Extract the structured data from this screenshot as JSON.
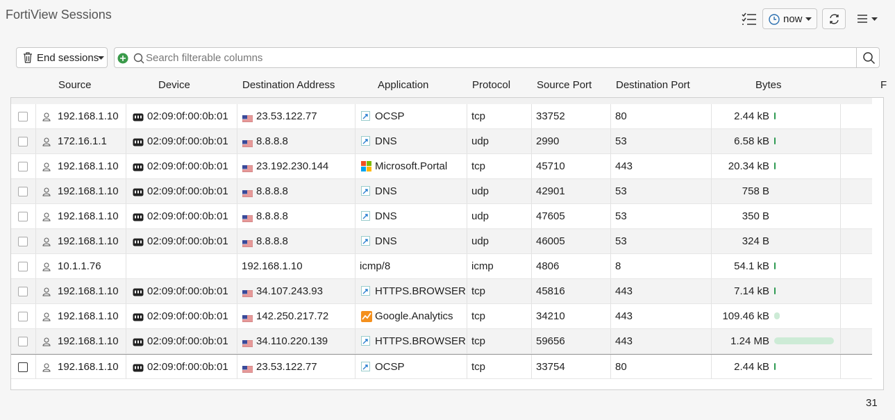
{
  "header": {
    "title": "FortiView Sessions",
    "time_button": "now"
  },
  "toolbar": {
    "end_sessions": "End sessions",
    "search_placeholder": "Search filterable columns"
  },
  "table": {
    "columns": [
      "Source",
      "Device",
      "Destination Address",
      "Application",
      "Protocol",
      "Source Port",
      "Destination Port",
      "Bytes",
      "F"
    ],
    "rows": [
      [
        "192.168.1.10",
        "02:09:0f:00:0b:01",
        "23.53.122.77",
        "OCSP",
        "tcp",
        "33752",
        "80",
        "2.44 kB"
      ],
      [
        "172.16.1.1",
        "02:09:0f:00:0b:01",
        "8.8.8.8",
        "DNS",
        "udp",
        "2990",
        "53",
        "6.58 kB"
      ],
      [
        "192.168.1.10",
        "02:09:0f:00:0b:01",
        "23.192.230.144",
        "Microsoft.Portal",
        "tcp",
        "45710",
        "443",
        "20.34 kB"
      ],
      [
        "192.168.1.10",
        "02:09:0f:00:0b:01",
        "8.8.8.8",
        "DNS",
        "udp",
        "42901",
        "53",
        "758 B"
      ],
      [
        "192.168.1.10",
        "02:09:0f:00:0b:01",
        "8.8.8.8",
        "DNS",
        "udp",
        "47605",
        "53",
        "350 B"
      ],
      [
        "192.168.1.10",
        "02:09:0f:00:0b:01",
        "8.8.8.8",
        "DNS",
        "udp",
        "46005",
        "53",
        "324 B"
      ],
      [
        "10.1.1.76",
        null,
        "192.168.1.10",
        "icmp/8",
        "icmp",
        "4806",
        "8",
        "54.1 kB"
      ],
      [
        "192.168.1.10",
        "02:09:0f:00:0b:01",
        "34.107.243.93",
        "HTTPS.BROWSER",
        "tcp",
        "45816",
        "443",
        "7.14 kB"
      ],
      [
        "192.168.1.10",
        "02:09:0f:00:0b:01",
        "142.250.217.72",
        "Google.Analytics",
        "tcp",
        "34210",
        "443",
        "109.46 kB"
      ],
      [
        "192.168.1.10",
        "02:09:0f:00:0b:01",
        "34.110.220.139",
        "HTTPS.BROWSER",
        "tcp",
        "59656",
        "443",
        "1.24 MB"
      ],
      [
        "192.168.1.10",
        "02:09:0f:00:0b:01",
        "23.53.122.77",
        "OCSP",
        "tcp",
        "33754",
        "80",
        "2.44 kB"
      ]
    ]
  },
  "footer": {
    "count": "31"
  }
}
